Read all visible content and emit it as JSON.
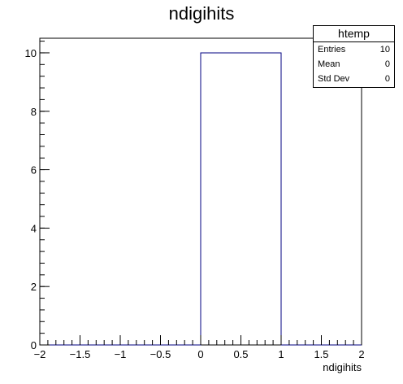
{
  "chart_data": {
    "type": "bar",
    "title": "ndigihits",
    "xlabel": "ndigihits",
    "ylabel": "",
    "xlim": [
      -2,
      2
    ],
    "ylim": [
      0,
      10.5
    ],
    "bins": [
      {
        "x0": 0,
        "x1": 1,
        "count": 10
      }
    ],
    "x_ticks": [
      "−2",
      "−1.5",
      "−1",
      "−0.5",
      "0",
      "0.5",
      "1",
      "1.5",
      "2"
    ],
    "y_ticks": [
      "0",
      "2",
      "4",
      "6",
      "8",
      "10"
    ],
    "line_color": "#000080",
    "grid": false
  },
  "stats": {
    "name": "htemp",
    "rows": [
      {
        "label": "Entries",
        "value": "10"
      },
      {
        "label": "Mean",
        "value": "0"
      },
      {
        "label": "Std Dev",
        "value": "0"
      }
    ]
  }
}
